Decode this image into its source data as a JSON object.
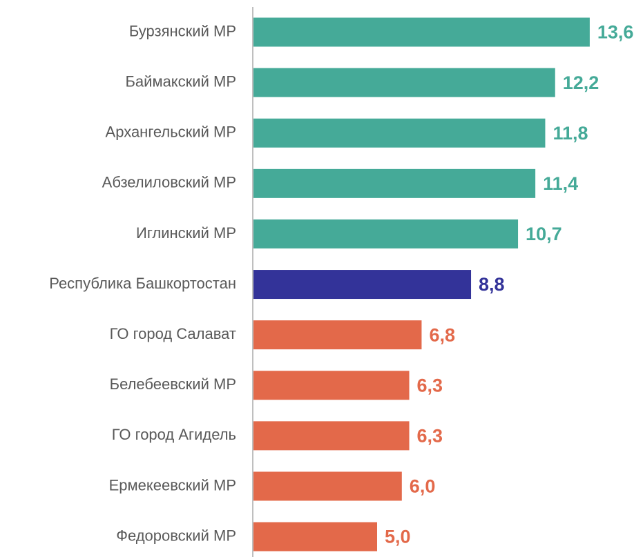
{
  "chart_data": {
    "type": "bar",
    "orientation": "horizontal",
    "categories": [
      "Бурзянский МР",
      "Баймакский МР",
      "Архангельский МР",
      "Абзелиловский МР",
      "Иглинский МР",
      "Республика Башкортостан",
      "ГО город Салават",
      "Белебеевский МР",
      "ГО город Агидель",
      "Ермекеевский МР",
      "Федоровский МР"
    ],
    "values": [
      13.6,
      12.2,
      11.8,
      11.4,
      10.7,
      8.8,
      6.8,
      6.3,
      6.3,
      6.0,
      5.0
    ],
    "value_labels": [
      "13,6",
      "12,2",
      "11,8",
      "11,4",
      "10,7",
      "8,8",
      "6,8",
      "6,3",
      "6,3",
      "6,0",
      "5,0"
    ],
    "colors": [
      "#45aa98",
      "#45aa98",
      "#45aa98",
      "#45aa98",
      "#45aa98",
      "#333399",
      "#e3694a",
      "#e3694a",
      "#e3694a",
      "#e3694a",
      "#e3694a"
    ]
  }
}
